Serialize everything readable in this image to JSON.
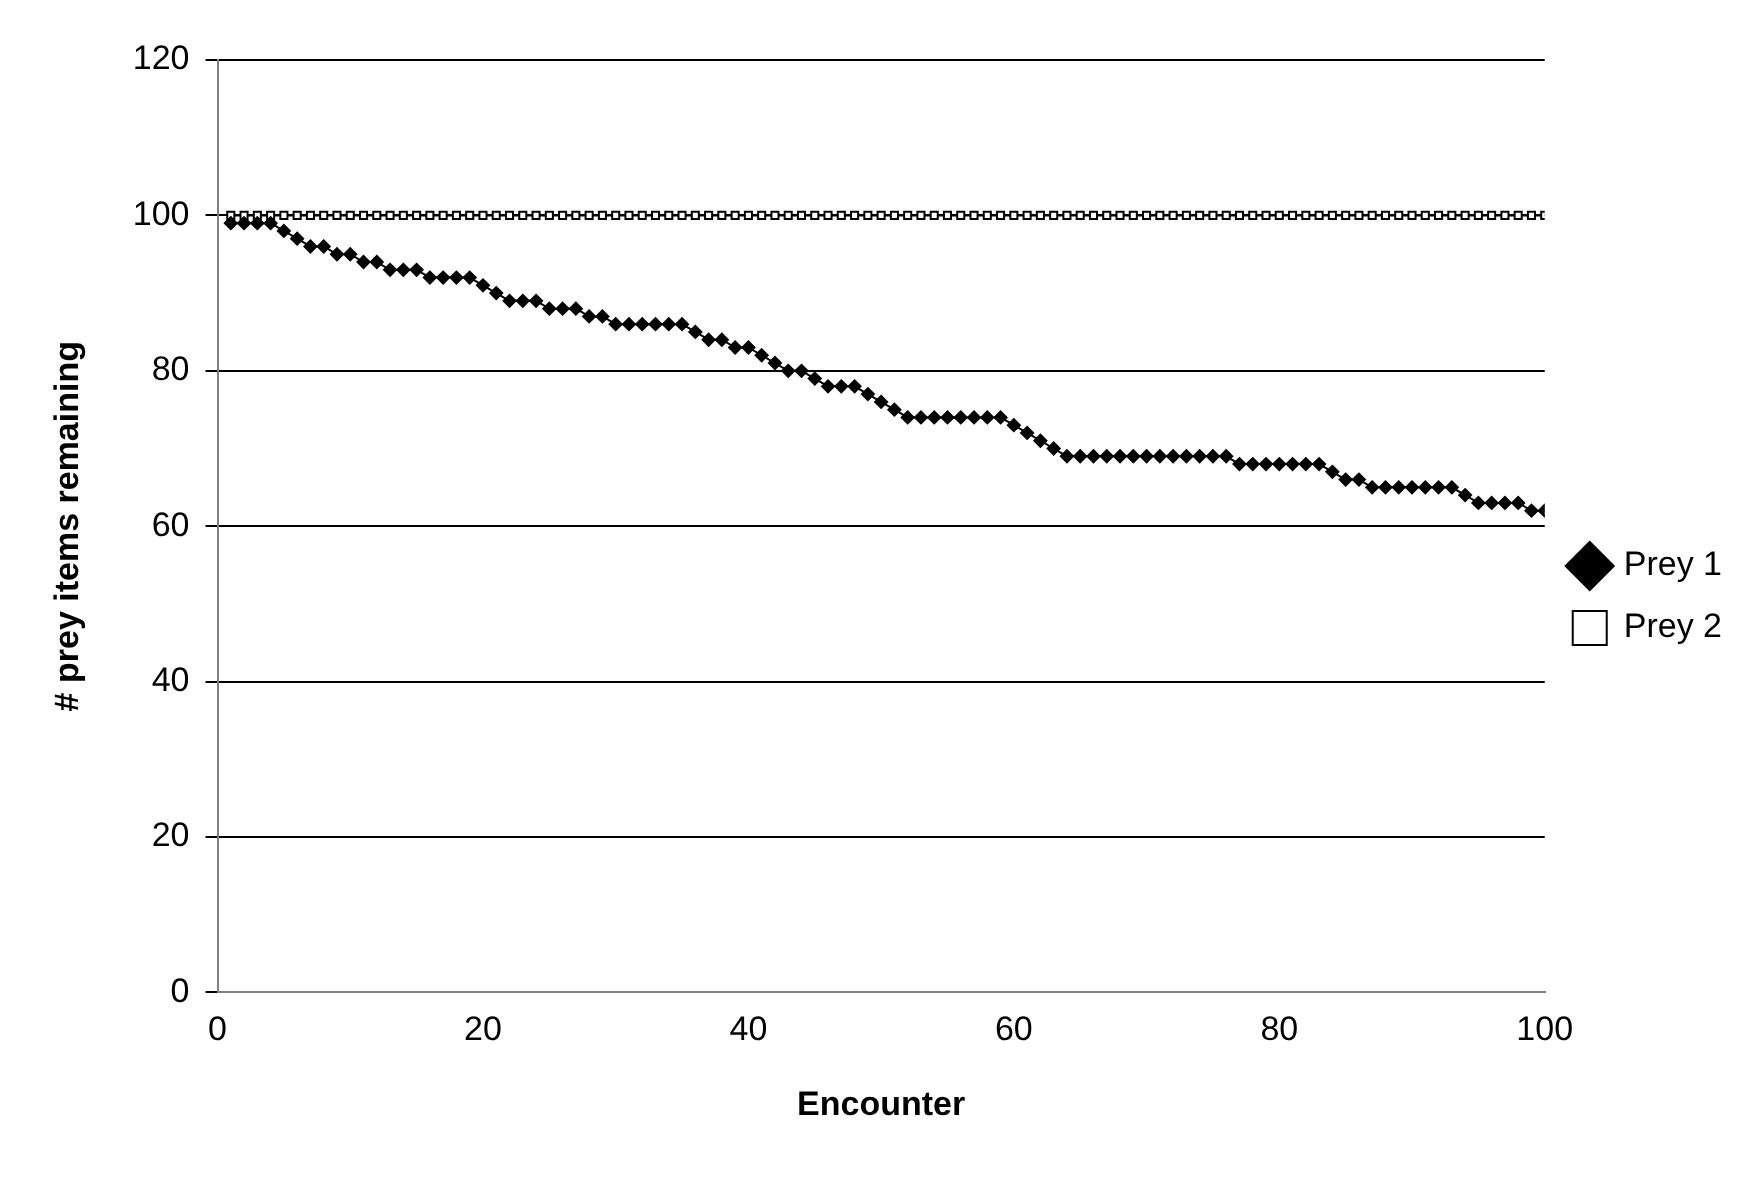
{
  "chart_data": {
    "type": "line",
    "xlabel": "Encounter",
    "ylabel": "# prey items remaining",
    "x": [
      1,
      2,
      3,
      4,
      5,
      6,
      7,
      8,
      9,
      10,
      11,
      12,
      13,
      14,
      15,
      16,
      17,
      18,
      19,
      20,
      21,
      22,
      23,
      24,
      25,
      26,
      27,
      28,
      29,
      30,
      31,
      32,
      33,
      34,
      35,
      36,
      37,
      38,
      39,
      40,
      41,
      42,
      43,
      44,
      45,
      46,
      47,
      48,
      49,
      50,
      51,
      52,
      53,
      54,
      55,
      56,
      57,
      58,
      59,
      60,
      61,
      62,
      63,
      64,
      65,
      66,
      67,
      68,
      69,
      70,
      71,
      72,
      73,
      74,
      75,
      76,
      77,
      78,
      79,
      80,
      81,
      82,
      83,
      84,
      85,
      86,
      87,
      88,
      89,
      90,
      91,
      92,
      93,
      94,
      95,
      96,
      97,
      98,
      99,
      100
    ],
    "series": [
      {
        "name": "Prey 1",
        "color": "#000000",
        "marker": "diamond",
        "values": [
          99,
          99,
          99,
          99,
          98,
          97,
          96,
          96,
          95,
          95,
          94,
          94,
          93,
          93,
          93,
          92,
          92,
          92,
          92,
          91,
          90,
          89,
          89,
          89,
          88,
          88,
          88,
          87,
          87,
          86,
          86,
          86,
          86,
          86,
          86,
          85,
          84,
          84,
          83,
          83,
          82,
          81,
          80,
          80,
          79,
          78,
          78,
          78,
          77,
          76,
          75,
          74,
          74,
          74,
          74,
          74,
          74,
          74,
          74,
          73,
          72,
          71,
          70,
          69,
          69,
          69,
          69,
          69,
          69,
          69,
          69,
          69,
          69,
          69,
          69,
          69,
          68,
          68,
          68,
          68,
          68,
          68,
          68,
          67,
          66,
          66,
          65,
          65,
          65,
          65,
          65,
          65,
          65,
          64,
          63,
          63,
          63,
          63,
          62,
          62
        ]
      },
      {
        "name": "Prey 2",
        "color": "#000000",
        "marker": "square",
        "values": [
          100,
          100,
          100,
          100,
          100,
          100,
          100,
          100,
          100,
          100,
          100,
          100,
          100,
          100,
          100,
          100,
          100,
          100,
          100,
          100,
          100,
          100,
          100,
          100,
          100,
          100,
          100,
          100,
          100,
          100,
          100,
          100,
          100,
          100,
          100,
          100,
          100,
          100,
          100,
          100,
          100,
          100,
          100,
          100,
          100,
          100,
          100,
          100,
          100,
          100,
          100,
          100,
          100,
          100,
          100,
          100,
          100,
          100,
          100,
          100,
          100,
          100,
          100,
          100,
          100,
          100,
          100,
          100,
          100,
          100,
          100,
          100,
          100,
          100,
          100,
          100,
          100,
          100,
          100,
          100,
          100,
          100,
          100,
          100,
          100,
          100,
          100,
          100,
          100,
          100,
          100,
          100,
          100,
          100,
          100,
          100,
          100,
          100,
          100,
          100
        ]
      }
    ],
    "xlim": [
      0,
      100
    ],
    "xticks": [
      0,
      20,
      40,
      60,
      80,
      100
    ],
    "ylim": [
      0,
      120
    ],
    "yticks": [
      0,
      20,
      40,
      60,
      80,
      100,
      120
    ],
    "grid": "y",
    "legend": "right",
    "line_style": "solid"
  }
}
